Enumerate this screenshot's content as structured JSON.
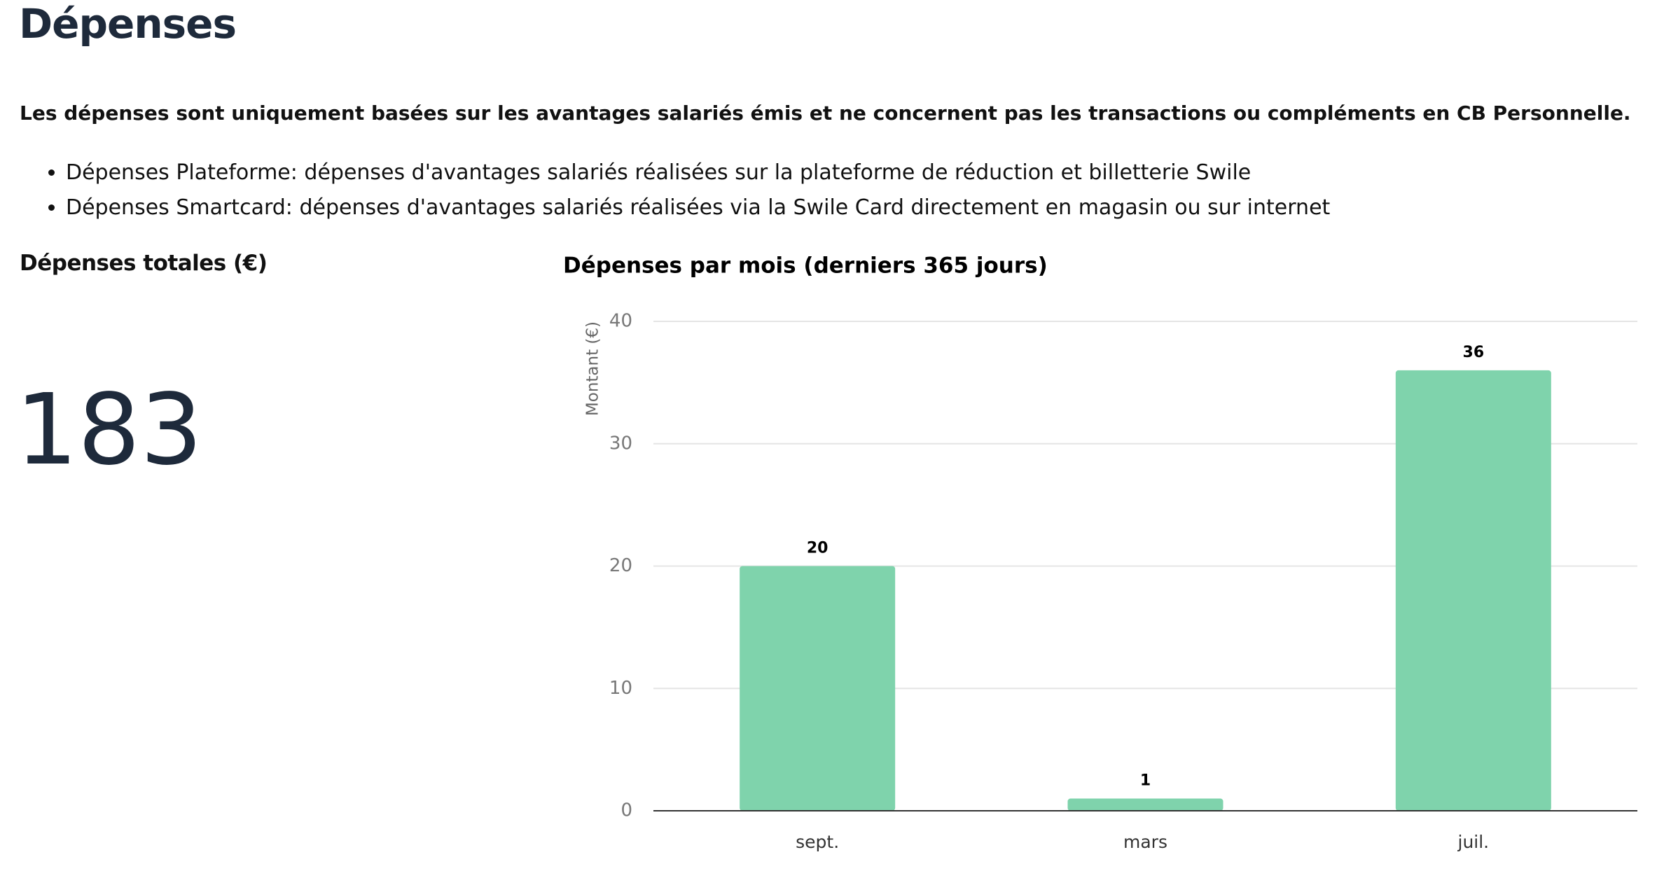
{
  "header": {
    "title": "Dépenses"
  },
  "description": {
    "intro": "Les dépenses sont uniquement basées sur les avantages salariés émis et ne concernent pas les transactions ou compléments en CB Personnelle.",
    "bullets": [
      "Dépenses Plateforme: dépenses d'avantages salariés réalisées sur la plateforme de réduction et billetterie Swile",
      "Dépenses Smartcard: dépenses d'avantages salariés réalisées via la Swile Card directement en magasin ou sur internet"
    ]
  },
  "kpi": {
    "title": "Dépenses totales (€)",
    "value": 183
  },
  "chart_data": {
    "type": "bar",
    "title": "Dépenses par mois (derniers 365 jours)",
    "y_label": "Montant (€)",
    "categories": [
      "sept.",
      "mars",
      "juil."
    ],
    "values": [
      20,
      1,
      36
    ],
    "color": "#7fd3ac",
    "ylim": [
      0,
      40
    ],
    "yticks": [
      0,
      10,
      20,
      30,
      40
    ],
    "grid": true
  }
}
